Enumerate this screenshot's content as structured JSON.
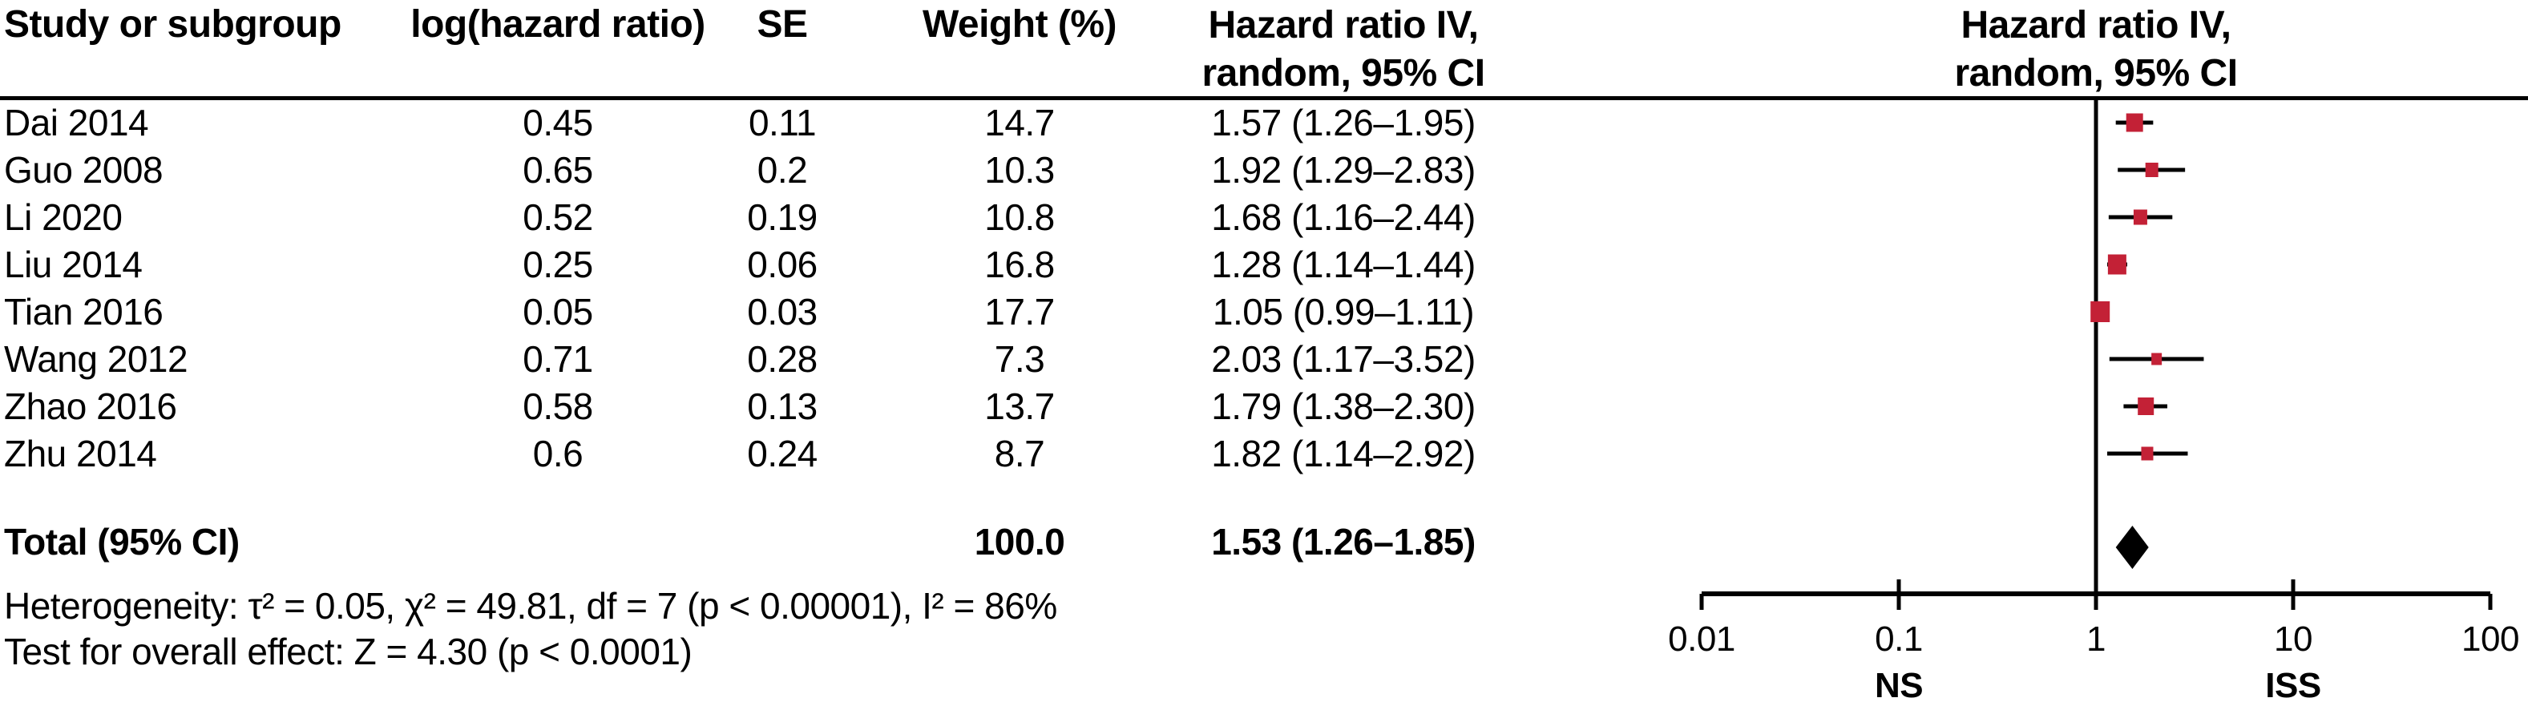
{
  "table": {
    "headers": {
      "study": "Study or subgroup",
      "log_hr": "log(hazard ratio)",
      "se": "SE",
      "weight": "Weight (%)",
      "hr_text_line1": "Hazard ratio IV,",
      "hr_text_line2": "random, 95% CI",
      "hr_plot_line1": "Hazard ratio IV,",
      "hr_plot_line2": "random, 95% CI"
    },
    "rows": [
      {
        "study": "Dai 2014",
        "log_hr": "0.45",
        "se": "0.11",
        "weight": "14.7",
        "hr_ci": "1.57 (1.26–1.95)"
      },
      {
        "study": "Guo 2008",
        "log_hr": "0.65",
        "se": "0.2",
        "weight": "10.3",
        "hr_ci": "1.92 (1.29–2.83)"
      },
      {
        "study": "Li 2020",
        "log_hr": "0.52",
        "se": "0.19",
        "weight": "10.8",
        "hr_ci": "1.68 (1.16–2.44)"
      },
      {
        "study": "Liu 2014",
        "log_hr": "0.25",
        "se": "0.06",
        "weight": "16.8",
        "hr_ci": "1.28 (1.14–1.44)"
      },
      {
        "study": "Tian 2016",
        "log_hr": "0.05",
        "se": "0.03",
        "weight": "17.7",
        "hr_ci": "1.05 (0.99–1.11)"
      },
      {
        "study": "Wang 2012",
        "log_hr": "0.71",
        "se": "0.28",
        "weight": "7.3",
        "hr_ci": "2.03 (1.17–3.52)"
      },
      {
        "study": "Zhao 2016",
        "log_hr": "0.58",
        "se": "0.13",
        "weight": "13.7",
        "hr_ci": "1.79 (1.38–2.30)"
      },
      {
        "study": "Zhu 2014",
        "log_hr": "0.6",
        "se": "0.24",
        "weight": "8.7",
        "hr_ci": "1.82 (1.14–2.92)"
      }
    ],
    "total": {
      "label": "Total (95% CI)",
      "weight": "100.0",
      "hr_ci": "1.53 (1.26–1.85)"
    }
  },
  "footer": {
    "heterogeneity": "Heterogeneity: τ² = 0.05, χ² = 49.81, df = 7 (p < 0.00001), I² = 86%",
    "overall_effect": "Test for overall effect: Z = 4.30 (p < 0.0001)"
  },
  "chart_data": {
    "type": "forest",
    "x_scale": "log10",
    "xlim": [
      0.01,
      100
    ],
    "axis_ticks": [
      0.01,
      0.1,
      1,
      10,
      100
    ],
    "axis_tick_labels": [
      "0.01",
      "0.1",
      "1",
      "10",
      "100"
    ],
    "favours_left": "NS",
    "favours_right": "ISS",
    "null_line": 1,
    "studies": [
      {
        "name": "Dai 2014",
        "hr": 1.57,
        "lo": 1.26,
        "hi": 1.95,
        "weight": 14.7
      },
      {
        "name": "Guo 2008",
        "hr": 1.92,
        "lo": 1.29,
        "hi": 2.83,
        "weight": 10.3
      },
      {
        "name": "Li 2020",
        "hr": 1.68,
        "lo": 1.16,
        "hi": 2.44,
        "weight": 10.8
      },
      {
        "name": "Liu 2014",
        "hr": 1.28,
        "lo": 1.14,
        "hi": 1.44,
        "weight": 16.8
      },
      {
        "name": "Tian 2016",
        "hr": 1.05,
        "lo": 0.99,
        "hi": 1.11,
        "weight": 17.7
      },
      {
        "name": "Wang 2012",
        "hr": 2.03,
        "lo": 1.17,
        "hi": 3.52,
        "weight": 7.3
      },
      {
        "name": "Zhao 2016",
        "hr": 1.79,
        "lo": 1.38,
        "hi": 2.3,
        "weight": 13.7
      },
      {
        "name": "Zhu 2014",
        "hr": 1.82,
        "lo": 1.14,
        "hi": 2.92,
        "weight": 8.7
      }
    ],
    "total": {
      "hr": 1.53,
      "lo": 1.26,
      "hi": 1.85
    },
    "marker_color": "#C32136",
    "line_color": "#000000",
    "text_color": "#000000"
  }
}
